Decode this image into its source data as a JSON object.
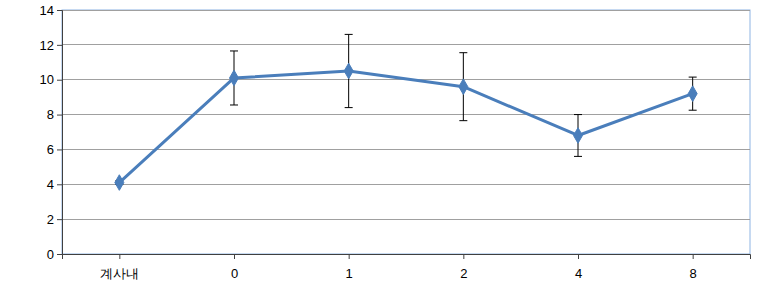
{
  "chart_data": {
    "type": "line",
    "categories": [
      "계사내",
      "0",
      "1",
      "2",
      "4",
      "8"
    ],
    "values": [
      4.1,
      10.1,
      10.5,
      9.6,
      6.8,
      9.2
    ],
    "errors": [
      0.1,
      1.55,
      2.1,
      1.95,
      1.2,
      0.95
    ],
    "color": "#4a7ebb",
    "marker": "diamond",
    "ylim": [
      0,
      14
    ],
    "yticks": [
      0,
      2,
      4,
      6,
      8,
      10,
      12,
      14
    ],
    "grid": true
  }
}
